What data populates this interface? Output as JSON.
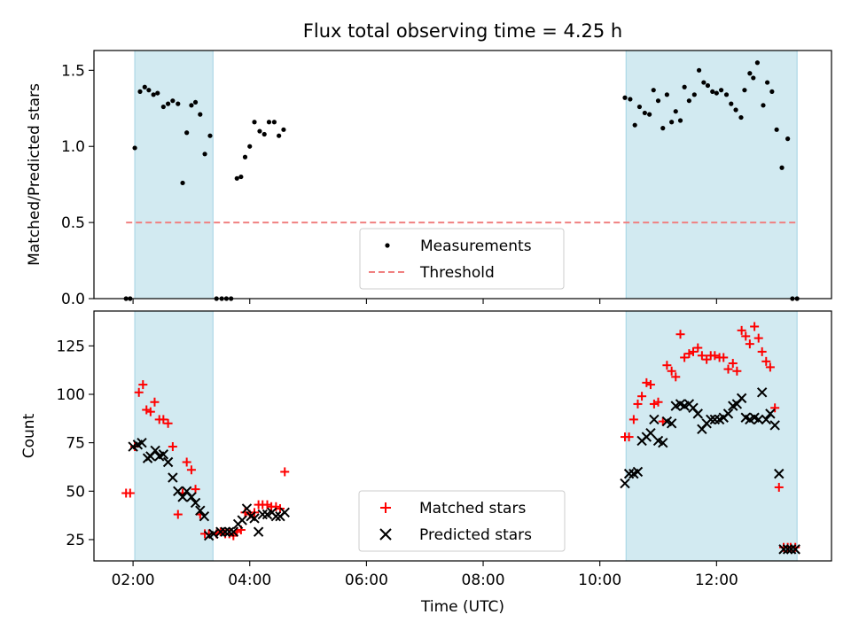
{
  "chart_data": {
    "title": "Flux total observing time = 4.25 h",
    "xlabel": "Time (UTC)",
    "x_unit": "hours (UTC)",
    "xlim": [
      1.33,
      13.97
    ],
    "x_ticks": [
      {
        "value": 2,
        "label": "02:00"
      },
      {
        "value": 4,
        "label": "04:00"
      },
      {
        "value": 6,
        "label": "06:00"
      },
      {
        "value": 8,
        "label": "08:00"
      },
      {
        "value": 10,
        "label": "10:00"
      },
      {
        "value": 12,
        "label": "12:00"
      }
    ],
    "shaded_intervals": [
      [
        2.03,
        3.37
      ],
      [
        10.45,
        13.38
      ]
    ],
    "shade_color": "#add8e6",
    "panels": [
      {
        "type": "scatter",
        "ylabel": "Matched/Predicted stars",
        "ylim": [
          0,
          1.63
        ],
        "y_ticks": [
          {
            "value": 0,
            "label": "0.0"
          },
          {
            "value": 0.5,
            "label": "0.5"
          },
          {
            "value": 1.0,
            "label": "1.0"
          },
          {
            "value": 1.5,
            "label": "1.5"
          }
        ],
        "legend_position": "lower-center",
        "series": [
          {
            "name": "Measurements",
            "marker": "dot",
            "color": "#000000",
            "x": [
              1.88,
              1.95,
              2.03,
              2.12,
              2.2,
              2.27,
              2.35,
              2.42,
              2.52,
              2.6,
              2.68,
              2.77,
              2.85,
              2.92,
              3.0,
              3.07,
              3.15,
              3.23,
              3.32,
              3.43,
              3.52,
              3.6,
              3.68,
              3.78,
              3.85,
              3.92,
              4.0,
              4.08,
              4.17,
              4.25,
              4.33,
              4.42,
              4.5,
              4.58,
              10.43,
              10.52,
              10.6,
              10.68,
              10.77,
              10.85,
              10.92,
              11.0,
              11.08,
              11.15,
              11.23,
              11.3,
              11.38,
              11.45,
              11.53,
              11.62,
              11.7,
              11.78,
              11.85,
              11.93,
              12.0,
              12.08,
              12.17,
              12.25,
              12.33,
              12.42,
              12.48,
              12.57,
              12.63,
              12.7,
              12.8,
              12.87,
              12.95,
              13.03,
              13.12,
              13.22,
              13.3,
              13.38
            ],
            "y": [
              0,
              0,
              0.99,
              1.36,
              1.39,
              1.37,
              1.34,
              1.35,
              1.26,
              1.28,
              1.3,
              1.28,
              0.76,
              1.09,
              1.27,
              1.29,
              1.21,
              0.95,
              1.07,
              0,
              0,
              0,
              0,
              0.79,
              0.8,
              0.93,
              1.0,
              1.16,
              1.1,
              1.08,
              1.16,
              1.16,
              1.07,
              1.11,
              1.32,
              1.31,
              1.14,
              1.26,
              1.22,
              1.21,
              1.37,
              1.3,
              1.12,
              1.34,
              1.16,
              1.23,
              1.17,
              1.39,
              1.3,
              1.34,
              1.5,
              1.42,
              1.4,
              1.36,
              1.35,
              1.37,
              1.34,
              1.28,
              1.24,
              1.19,
              1.37,
              1.48,
              1.45,
              1.55,
              1.27,
              1.42,
              1.36,
              1.11,
              0.86,
              1.05,
              0,
              0
            ]
          },
          {
            "name": "Threshold",
            "marker": "dashed-line",
            "color": "#f08080",
            "x": [
              1.88,
              13.38
            ],
            "y": [
              0.5,
              0.5
            ]
          }
        ]
      },
      {
        "type": "scatter",
        "ylabel": "Count",
        "ylim": [
          14,
          143
        ],
        "y_ticks": [
          {
            "value": 25,
            "label": "25"
          },
          {
            "value": 50,
            "label": "50"
          },
          {
            "value": 75,
            "label": "75"
          },
          {
            "value": 100,
            "label": "100"
          },
          {
            "value": 125,
            "label": "125"
          }
        ],
        "legend_position": "lower-center",
        "series": [
          {
            "name": "Matched stars",
            "marker": "plus",
            "color": "#ff0000",
            "x": [
              1.88,
              1.95,
              2.03,
              2.1,
              2.17,
              2.23,
              2.3,
              2.37,
              2.45,
              2.52,
              2.6,
              2.68,
              2.77,
              2.85,
              2.92,
              3.0,
              3.07,
              3.15,
              3.23,
              3.3,
              3.43,
              3.5,
              3.58,
              3.65,
              3.72,
              3.78,
              3.85,
              3.92,
              4.0,
              4.08,
              4.15,
              4.22,
              4.3,
              4.37,
              4.45,
              4.52,
              4.6,
              10.43,
              10.5,
              10.58,
              10.65,
              10.72,
              10.8,
              10.87,
              10.93,
              11.0,
              11.08,
              11.15,
              11.23,
              11.3,
              11.38,
              11.45,
              11.53,
              11.6,
              11.68,
              11.75,
              11.83,
              11.9,
              11.97,
              12.05,
              12.12,
              12.2,
              12.28,
              12.35,
              12.43,
              12.5,
              12.57,
              12.65,
              12.72,
              12.78,
              12.85,
              12.92,
              13.0,
              13.07,
              13.15,
              13.22,
              13.27,
              13.35
            ],
            "y": [
              49,
              49,
              73,
              101,
              105,
              92,
              91,
              96,
              87,
              87,
              85,
              73,
              38,
              49,
              65,
              61,
              51,
              38,
              28,
              28,
              28,
              29,
              28,
              28,
              27,
              29,
              30,
              39,
              38,
              39,
              43,
              43,
              43,
              42,
              42,
              41,
              60,
              78,
              78,
              87,
              95,
              99,
              106,
              105,
              95,
              96,
              86,
              115,
              112,
              109,
              131,
              119,
              121,
              122,
              124,
              120,
              118,
              120,
              120,
              119,
              119,
              113,
              116,
              112,
              133,
              130,
              126,
              135,
              129,
              122,
              117,
              114,
              93,
              52,
              21,
              21,
              21,
              21
            ]
          },
          {
            "name": "Predicted stars",
            "marker": "x",
            "color": "#000000",
            "x": [
              2.0,
              2.08,
              2.15,
              2.25,
              2.3,
              2.38,
              2.45,
              2.52,
              2.6,
              2.68,
              2.77,
              2.85,
              2.92,
              3.0,
              3.07,
              3.15,
              3.22,
              3.3,
              3.38,
              3.5,
              3.58,
              3.65,
              3.72,
              3.8,
              3.87,
              3.95,
              4.02,
              4.08,
              4.15,
              4.22,
              4.3,
              4.38,
              4.45,
              4.52,
              4.6,
              10.43,
              10.5,
              10.58,
              10.65,
              10.72,
              10.8,
              10.87,
              10.93,
              11.0,
              11.08,
              11.15,
              11.23,
              11.3,
              11.38,
              11.45,
              11.53,
              11.6,
              11.68,
              11.75,
              11.83,
              11.9,
              11.97,
              12.05,
              12.12,
              12.2,
              12.28,
              12.35,
              12.43,
              12.5,
              12.57,
              12.65,
              12.72,
              12.78,
              12.85,
              12.92,
              13.0,
              13.07,
              13.15,
              13.22,
              13.28,
              13.35
            ],
            "y": [
              73,
              74,
              75,
              67,
              68,
              71,
              68,
              69,
              65,
              57,
              50,
              47,
              50,
              47,
              44,
              40,
              37,
              27,
              28,
              29,
              29,
              29,
              29,
              33,
              35,
              41,
              37,
              36,
              29,
              38,
              38,
              39,
              37,
              37,
              39,
              54,
              59,
              59,
              60,
              76,
              78,
              80,
              87,
              76,
              75,
              86,
              85,
              94,
              95,
              94,
              95,
              93,
              90,
              82,
              85,
              87,
              87,
              87,
              88,
              90,
              94,
              95,
              98,
              88,
              87,
              88,
              87,
              101,
              87,
              90,
              84,
              59,
              20,
              20,
              20,
              20
            ]
          }
        ]
      }
    ]
  }
}
